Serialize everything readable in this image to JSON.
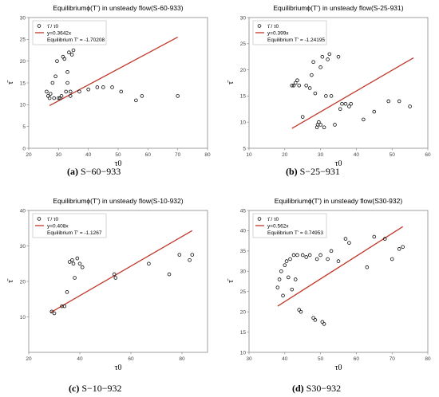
{
  "chart_data": [
    {
      "type": "scatter",
      "title": "Equilibriumϕ(T') in unsteady flow(S-60-933)",
      "xlabel": "τ0",
      "ylabel": "τ̄",
      "xlim": [
        20,
        80
      ],
      "ylim": [
        0,
        30
      ],
      "xticks": [
        "20",
        "30",
        "40",
        "50",
        "60",
        "70",
        "80"
      ],
      "yticks": [
        "0",
        "5",
        "10",
        "15",
        "20",
        "25",
        "30"
      ],
      "grid": false,
      "legend_position": "top-left",
      "series": [
        {
          "name": "τ̄ / τ0",
          "marker": "circle-open",
          "x": [
            26,
            26.5,
            27,
            27.3,
            28,
            28.5,
            29,
            29.5,
            30,
            30.5,
            31,
            31.5,
            32,
            32.5,
            33,
            33,
            33.5,
            34,
            34,
            34.5,
            35,
            37,
            40,
            43,
            45,
            48,
            51,
            56,
            58,
            70
          ],
          "y": [
            13,
            12,
            11.5,
            12.5,
            15,
            11.5,
            16.5,
            20,
            11.5,
            11.5,
            12,
            21,
            20.5,
            13,
            17.5,
            15,
            22,
            12,
            13,
            21.5,
            22.5,
            13,
            13.5,
            14,
            14,
            14,
            13,
            11,
            12,
            12
          ]
        },
        {
          "name": "y=0.3642x",
          "type": "line",
          "color": "#c0392b",
          "x": [
            27,
            70
          ],
          "y": [
            9.8,
            25.5
          ]
        }
      ],
      "legend_extra": "Equilibrium T' = -1.70208",
      "caption_label": "(a)",
      "caption_text": "S−60−933"
    },
    {
      "type": "scatter",
      "title": "Equilibriumϕ(T') in unsteady flow(S-25-931)",
      "xlabel": "τ0",
      "ylabel": "τ̄",
      "xlim": [
        10,
        60
      ],
      "ylim": [
        5,
        30
      ],
      "xticks": [
        "10",
        "20",
        "30",
        "40",
        "50",
        "60"
      ],
      "yticks": [
        "5",
        "10",
        "15",
        "20",
        "25",
        "30"
      ],
      "grid": false,
      "legend_position": "top-left",
      "series": [
        {
          "name": "τ̄ / τ0",
          "marker": "circle-open",
          "x": [
            22,
            22.5,
            23,
            23.5,
            24,
            25,
            26,
            27,
            27.5,
            28,
            28.5,
            29,
            29.2,
            29.5,
            30,
            30,
            30.5,
            31,
            31.5,
            32,
            32.5,
            33,
            34,
            35,
            35.5,
            36,
            37,
            38,
            38.5,
            42,
            45,
            49,
            52,
            55
          ],
          "y": [
            17,
            17,
            17.5,
            18,
            17,
            11,
            17,
            16.5,
            19,
            21.5,
            15.5,
            9,
            9.5,
            10,
            9.5,
            20.5,
            22.5,
            9,
            15,
            22,
            23,
            15,
            9.5,
            22.5,
            12.5,
            13.5,
            13.5,
            13,
            13.5,
            10.5,
            12,
            14,
            14,
            13
          ]
        },
        {
          "name": "y=0.399x",
          "type": "line",
          "color": "#c0392b",
          "x": [
            22,
            56
          ],
          "y": [
            8.8,
            22.3
          ]
        }
      ],
      "legend_extra": "Equilibrium T' = -1.24195",
      "caption_label": "(b)",
      "caption_text": "S−25−931"
    },
    {
      "type": "scatter",
      "title": "Equilibriumϕ(T') in unsteady flow(S-10-932)",
      "xlabel": "τ0",
      "ylabel": "τ̄",
      "xlim": [
        20,
        90
      ],
      "ylim": [
        0,
        40
      ],
      "xticks": [
        "20",
        "40",
        "60",
        "80"
      ],
      "yticks": [
        "10",
        "20",
        "30",
        "40"
      ],
      "grid": false,
      "legend_position": "top-left",
      "series": [
        {
          "name": "τ̄ / τ0",
          "marker": "circle-open",
          "x": [
            29,
            30,
            33,
            34,
            35,
            36,
            37,
            37.5,
            38,
            39,
            40,
            41,
            53.5,
            54,
            67,
            75,
            79,
            83,
            84
          ],
          "y": [
            11.5,
            11,
            13,
            13,
            17,
            25.5,
            26,
            25,
            21,
            26.5,
            25,
            24,
            22,
            21,
            25,
            22,
            27.5,
            26,
            27.5
          ]
        },
        {
          "name": "y=0.408x",
          "type": "line",
          "color": "#c0392b",
          "x": [
            28.5,
            84
          ],
          "y": [
            11.2,
            34.3
          ]
        }
      ],
      "legend_extra": "Equilibrium T' = -1.1267",
      "caption_label": "(c)",
      "caption_text": "S−10−932"
    },
    {
      "type": "scatter",
      "title": "Equilibriumϕ(T') in unsteady flow(S30-932)",
      "xlabel": "τ0",
      "ylabel": "τ̄",
      "xlim": [
        30,
        80
      ],
      "ylim": [
        10,
        45
      ],
      "xticks": [
        "30",
        "40",
        "50",
        "60",
        "70",
        "80"
      ],
      "yticks": [
        "10",
        "15",
        "20",
        "25",
        "30",
        "35",
        "40",
        "45"
      ],
      "grid": false,
      "legend_position": "top-left",
      "series": [
        {
          "name": "τ̄ / τ0",
          "marker": "circle-open",
          "x": [
            38,
            38.5,
            39,
            39.5,
            40,
            40.5,
            41,
            41.5,
            42,
            42.5,
            43,
            43.5,
            44,
            44.5,
            45,
            46,
            47,
            48,
            48.5,
            49,
            50,
            50.5,
            51,
            52,
            53,
            55,
            57,
            58,
            63,
            65,
            68,
            70,
            72,
            73
          ],
          "y": [
            26,
            28,
            30,
            24,
            31.5,
            32.5,
            28.5,
            33,
            25.5,
            34,
            28,
            34,
            20.5,
            20,
            34,
            33.5,
            34,
            18.5,
            18,
            33,
            34,
            17.5,
            17,
            33,
            35,
            32.5,
            38,
            37,
            31,
            38.5,
            38,
            33,
            35.5,
            36
          ]
        },
        {
          "name": "y=0.562x",
          "type": "line",
          "color": "#c0392b",
          "x": [
            38,
            73
          ],
          "y": [
            21.4,
            41
          ]
        }
      ],
      "legend_extra": "Equilibrium T' = 0.74953",
      "caption_label": "(d)",
      "caption_text": "S30−932"
    }
  ]
}
